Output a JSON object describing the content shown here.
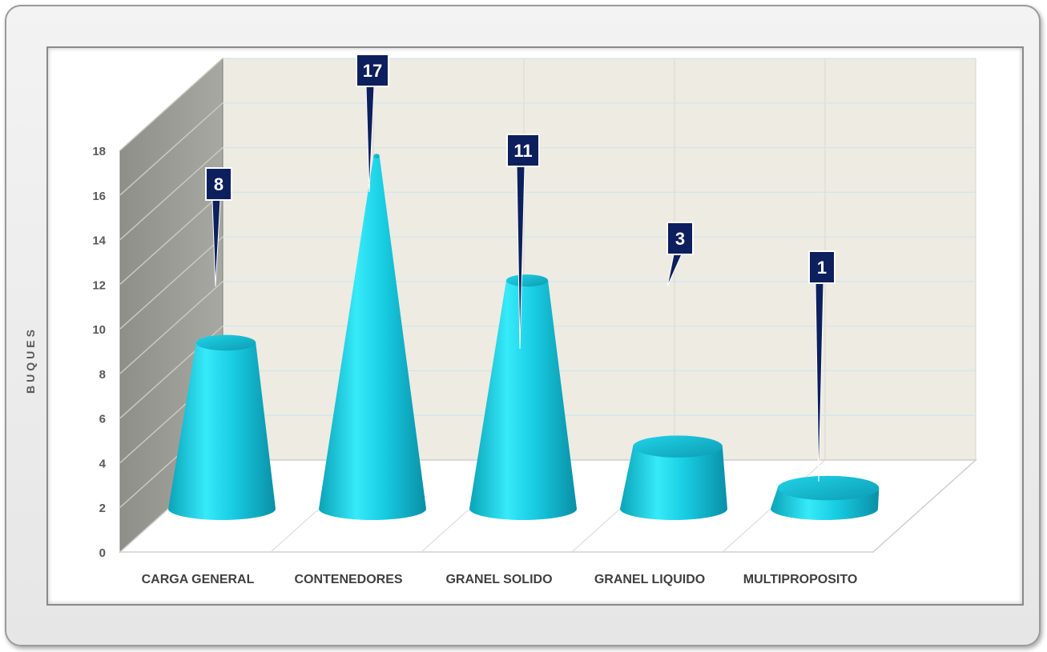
{
  "chart_data": {
    "type": "bar",
    "style": "3d-cone",
    "categories": [
      "CARGA GENERAL",
      "CONTENEDORES",
      "GRANEL SOLIDO",
      "GRANEL LIQUIDO",
      "MULTIPROPOSITO"
    ],
    "values": [
      8,
      17,
      11,
      3,
      1
    ],
    "data_labels": [
      "8",
      "17",
      "11",
      "3",
      "1"
    ],
    "title": "",
    "xlabel": "",
    "ylabel": "BUQUES",
    "ylim": [
      0,
      18
    ],
    "yticks": [
      "0",
      "2",
      "4",
      "6",
      "8",
      "10",
      "12",
      "14",
      "16",
      "18"
    ],
    "grid": true,
    "legend": "none",
    "colors": {
      "cone_light": "#33e6f7",
      "cone_mid": "#15c2da",
      "cone_dark": "#0a92a8",
      "callout_bg": "#0d1f5c",
      "back_wall": "#edebe2",
      "side_wall": "#9b9b96",
      "floor": "#ffffff"
    }
  }
}
